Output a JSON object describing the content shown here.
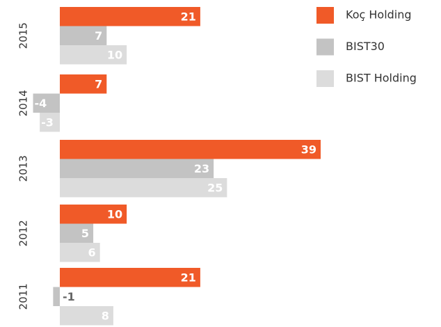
{
  "chart_data": {
    "type": "bar",
    "orientation": "horizontal",
    "categories": [
      "2015",
      "2014",
      "2013",
      "2012",
      "2011"
    ],
    "series": [
      {
        "name": "Koç Holding",
        "color": "#f05a28",
        "values": [
          21,
          7,
          39,
          10,
          21
        ]
      },
      {
        "name": "BIST30",
        "color": "#c3c3c3",
        "values": [
          7,
          -4,
          23,
          5,
          -1
        ]
      },
      {
        "name": "BIST Holding",
        "color": "#dcdcdc",
        "values": [
          10,
          -3,
          25,
          6,
          8
        ]
      }
    ],
    "legend": "top-right"
  }
}
